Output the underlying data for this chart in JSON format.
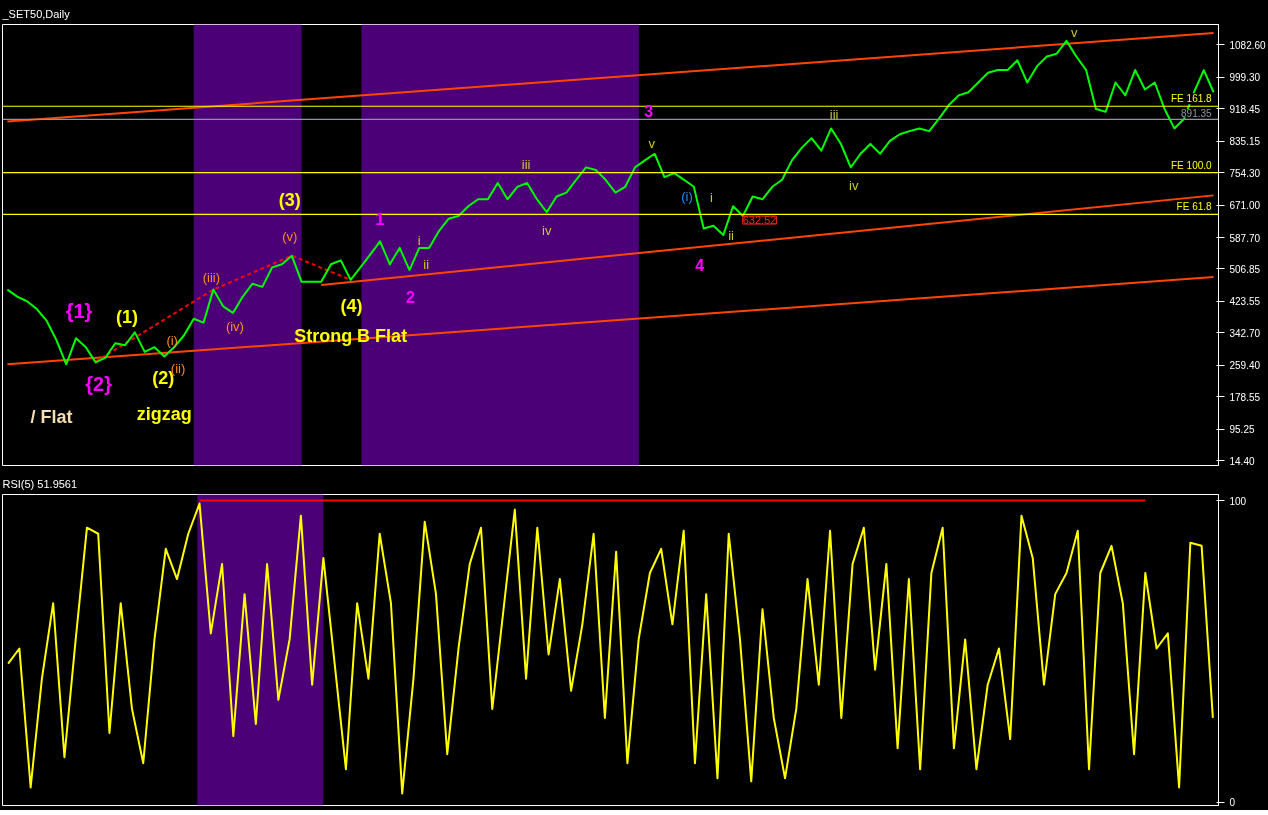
{
  "chart_data": [
    {
      "type": "line",
      "title": "_SET50,Daily",
      "ylim": [
        2,
        1135
      ],
      "tick_labels": "y",
      "grid": false,
      "categories": [
        null,
        null,
        null,
        null,
        null,
        null,
        null,
        null,
        null,
        null,
        null,
        null,
        null,
        null,
        null,
        null,
        null,
        null,
        null,
        null,
        null,
        null,
        null,
        null,
        null,
        null,
        null,
        null,
        null,
        null,
        null,
        null,
        null,
        null,
        null,
        null,
        null,
        null,
        null,
        null,
        null,
        null,
        null,
        null,
        null,
        null,
        null,
        null,
        null,
        null,
        null,
        null,
        null,
        null,
        null,
        null,
        null,
        null,
        null,
        null,
        null,
        null,
        null,
        null,
        null,
        null,
        null,
        null,
        null,
        null,
        null,
        null,
        null,
        null,
        null,
        null,
        null,
        null,
        null,
        null,
        null,
        null,
        null,
        null,
        null,
        null,
        null,
        null,
        null,
        null,
        null,
        null,
        null,
        null,
        null,
        null,
        null,
        null,
        null,
        null,
        null,
        null,
        null,
        null,
        null,
        null,
        null,
        null,
        null,
        null,
        null,
        null,
        null,
        null,
        null,
        null,
        null,
        null,
        null,
        null,
        null,
        null,
        null,
        null
      ],
      "yticks": [
        {
          "value": 14.4,
          "label": "14.40"
        },
        {
          "value": 95.25,
          "label": "95.25"
        },
        {
          "value": 178.55,
          "label": "178.55"
        },
        {
          "value": 259.4,
          "label": "259.40"
        },
        {
          "value": 342.7,
          "label": "342.70"
        },
        {
          "value": 423.55,
          "label": "423.55"
        },
        {
          "value": 506.85,
          "label": "506.85"
        },
        {
          "value": 587.7,
          "label": "587.70"
        },
        {
          "value": 671.0,
          "label": "671.00"
        },
        {
          "value": 754.3,
          "label": "754.30"
        },
        {
          "value": 835.15,
          "label": "835.15"
        },
        {
          "value": 918.45,
          "label": "918.45"
        },
        {
          "value": 999.3,
          "label": "999.30"
        },
        {
          "value": 1082.6,
          "label": "1082.60"
        }
      ],
      "ref_lines": [
        {
          "axis": "y",
          "value": 925,
          "label": "FE 161.8",
          "color": "#ffff00"
        },
        {
          "axis": "y",
          "value": 891.35,
          "label": "891.35",
          "color": "#8c96a0"
        },
        {
          "axis": "y",
          "value": 754.3,
          "label": "FE 100.0",
          "color": "#ffff00"
        },
        {
          "axis": "y",
          "value": 647,
          "label": "FE 61.8",
          "color": "#ffff00"
        }
      ],
      "series": [
        {
          "color": "#ff4500",
          "values": [
            886,
            null,
            null,
            null,
            null,
            null,
            null,
            null,
            null,
            null,
            null,
            null,
            null,
            null,
            null,
            null,
            null,
            null,
            null,
            null,
            null,
            null,
            null,
            null,
            null,
            null,
            null,
            null,
            null,
            null,
            null,
            null,
            null,
            null,
            null,
            null,
            null,
            null,
            null,
            null,
            null,
            null,
            null,
            null,
            null,
            null,
            null,
            null,
            null,
            null,
            null,
            null,
            null,
            null,
            null,
            null,
            null,
            null,
            null,
            null,
            null,
            null,
            null,
            null,
            null,
            null,
            null,
            null,
            null,
            null,
            null,
            null,
            null,
            null,
            null,
            null,
            null,
            null,
            null,
            null,
            null,
            null,
            null,
            null,
            null,
            null,
            null,
            null,
            null,
            null,
            null,
            null,
            null,
            null,
            null,
            null,
            null,
            null,
            null,
            null,
            null,
            null,
            null,
            null,
            null,
            null,
            null,
            null,
            null,
            null,
            null,
            null,
            null,
            null,
            null,
            null,
            null,
            null,
            null,
            null,
            null,
            null,
            null,
            1113
          ]
        },
        {
          "color": "#ff4500",
          "values": [
            null,
            null,
            null,
            null,
            null,
            null,
            null,
            null,
            null,
            null,
            null,
            null,
            null,
            null,
            null,
            null,
            null,
            null,
            null,
            null,
            null,
            null,
            null,
            null,
            null,
            null,
            null,
            null,
            null,
            null,
            null,
            null,
            466,
            null,
            null,
            null,
            null,
            null,
            null,
            null,
            null,
            null,
            null,
            null,
            null,
            null,
            null,
            null,
            null,
            null,
            null,
            null,
            null,
            null,
            null,
            null,
            null,
            null,
            null,
            null,
            null,
            null,
            null,
            null,
            null,
            null,
            null,
            null,
            null,
            null,
            null,
            null,
            null,
            null,
            null,
            null,
            null,
            null,
            null,
            null,
            null,
            null,
            null,
            null,
            null,
            null,
            null,
            null,
            null,
            null,
            null,
            null,
            null,
            null,
            null,
            null,
            null,
            null,
            null,
            null,
            null,
            null,
            null,
            null,
            null,
            null,
            null,
            null,
            null,
            null,
            null,
            null,
            null,
            null,
            null,
            null,
            null,
            null,
            null,
            null,
            null,
            null,
            null,
            696
          ]
        },
        {
          "color": "#ff4500",
          "values": [
            262,
            null,
            null,
            null,
            null,
            null,
            null,
            null,
            null,
            null,
            null,
            null,
            null,
            null,
            null,
            null,
            null,
            null,
            null,
            null,
            null,
            null,
            null,
            null,
            null,
            null,
            null,
            null,
            null,
            null,
            null,
            null,
            null,
            null,
            null,
            null,
            null,
            null,
            null,
            null,
            null,
            null,
            null,
            null,
            null,
            null,
            null,
            null,
            null,
            null,
            null,
            null,
            null,
            null,
            null,
            null,
            null,
            null,
            null,
            null,
            null,
            null,
            null,
            null,
            null,
            null,
            null,
            null,
            null,
            null,
            null,
            null,
            null,
            null,
            null,
            null,
            null,
            null,
            null,
            null,
            null,
            null,
            null,
            null,
            null,
            null,
            null,
            null,
            null,
            null,
            null,
            null,
            null,
            null,
            null,
            null,
            null,
            null,
            null,
            null,
            null,
            null,
            null,
            null,
            null,
            null,
            null,
            null,
            null,
            null,
            null,
            null,
            null,
            null,
            null,
            null,
            null,
            null,
            null,
            null,
            null,
            null,
            null,
            486
          ]
        },
        {
          "color": "#ff0000",
          "line_style": "dashed",
          "values": [
            null,
            null,
            null,
            null,
            null,
            null,
            null,
            null,
            null,
            269,
            null,
            null,
            null,
            null,
            null,
            null,
            null,
            null,
            null,
            null,
            null,
            454,
            null,
            null,
            null,
            null,
            null,
            null,
            null,
            541,
            null,
            null,
            null,
            null,
            null,
            479,
            null,
            null,
            null,
            null,
            null,
            null,
            null,
            null,
            null,
            null,
            null,
            null,
            null,
            null,
            null,
            null,
            null,
            null,
            null,
            null,
            null,
            null,
            null,
            null,
            null,
            null,
            null,
            null,
            null,
            null,
            null,
            null,
            null,
            null,
            null,
            null,
            null,
            null,
            null,
            null,
            null,
            null,
            null,
            null,
            null,
            null,
            null,
            null,
            null,
            null,
            null,
            null,
            null,
            null,
            null,
            null,
            null,
            null,
            null,
            null,
            null,
            null,
            null,
            null,
            null,
            null,
            null,
            null,
            null,
            null,
            null,
            null,
            null,
            null,
            null,
            null,
            null,
            null,
            null,
            null,
            null,
            null,
            null,
            null,
            null,
            null,
            null,
            null
          ]
        },
        {
          "color": "#00ff00",
          "values": [
            454,
            436,
            424,
            404,
            374,
            324,
            262,
            329,
            306,
            267,
            279,
            316,
            311,
            344,
            294,
            306,
            282,
            306,
            336,
            379,
            369,
            454,
            411,
            394,
            436,
            469,
            461,
            511,
            519,
            541,
            474,
            474,
            474,
            519,
            529,
            479,
            511,
            544,
            578,
            519,
            561,
            504,
            561,
            561,
            604,
            636,
            643,
            668,
            686,
            686,
            728,
            686,
            718,
            728,
            686,
            653,
            693,
            703,
            736,
            768,
            761,
            736,
            703,
            718,
            768,
            786,
            803,
            743,
            753,
            736,
            718,
            611,
            618,
            594,
            668,
            643,
            693,
            686,
            718,
            736,
            786,
            818,
            843,
            811,
            868,
            828,
            768,
            803,
            828,
            803,
            836,
            853,
            861,
            868,
            861,
            893,
            928,
            953,
            961,
            986,
            1011,
            1018,
            1018,
            1043,
            986,
            1028,
            1053,
            1060,
            1093,
            1053,
            1018,
            918,
            911,
            986,
            953,
            1018,
            968,
            986,
            918,
            868,
            893,
            961,
            1018,
            961
          ]
        }
      ],
      "annotations": [
        "{1}",
        "{2}",
        "(1)",
        "(2)",
        "zigzag",
        "/ Flat",
        "(i)",
        "(ii)",
        "(iii)",
        "(iv)",
        "(v)",
        "(3)",
        "(4)",
        "Strong B Flat",
        "1",
        "2",
        "i",
        "ii",
        "iii",
        "iv",
        "3",
        "v",
        "4",
        "(i)",
        "i",
        "ii",
        "632.52",
        "iii",
        "iv",
        "v"
      ]
    },
    {
      "type": "line",
      "title": "RSI(5) 51.9561",
      "ylim": [
        -1,
        102
      ],
      "tick_labels": "y",
      "grid": false,
      "yticks": [
        0,
        100
      ],
      "categories": [
        null,
        null,
        null,
        null,
        null,
        null,
        null,
        null,
        null,
        null,
        null,
        null,
        null,
        null,
        null,
        null,
        null,
        null,
        null,
        null,
        null,
        null,
        null,
        null,
        null,
        null,
        null,
        null,
        null,
        null,
        null,
        null,
        null,
        null,
        null,
        null,
        null,
        null,
        null,
        null,
        null,
        null,
        null,
        null,
        null,
        null,
        null,
        null,
        null,
        null,
        null,
        null,
        null,
        null,
        null,
        null,
        null,
        null,
        null,
        null,
        null,
        null,
        null,
        null,
        null,
        null,
        null,
        null,
        null,
        null,
        null,
        null,
        null,
        null,
        null,
        null,
        null,
        null,
        null,
        null,
        null,
        null,
        null,
        null,
        null,
        null,
        null,
        null,
        null,
        null,
        null,
        null,
        null,
        null,
        null,
        null,
        null,
        null,
        null,
        null,
        null,
        null,
        null,
        null,
        null,
        null,
        null,
        null
      ],
      "series": [
        {
          "color": "#ff0000",
          "values": [
            null,
            null,
            null,
            null,
            null,
            null,
            null,
            null,
            null,
            null,
            null,
            null,
            null,
            null,
            null,
            null,
            null,
            100,
            null,
            null,
            null,
            null,
            null,
            null,
            null,
            null,
            null,
            null,
            null,
            null,
            null,
            null,
            null,
            null,
            null,
            null,
            null,
            null,
            null,
            null,
            null,
            null,
            null,
            null,
            null,
            null,
            null,
            null,
            null,
            null,
            null,
            null,
            null,
            null,
            null,
            null,
            null,
            null,
            null,
            null,
            null,
            null,
            null,
            null,
            null,
            null,
            null,
            null,
            null,
            null,
            null,
            null,
            null,
            null,
            null,
            null,
            null,
            null,
            null,
            null,
            null,
            null,
            null,
            null,
            null,
            null,
            null,
            null,
            null,
            null,
            null,
            null,
            null,
            null,
            null,
            null,
            null,
            null,
            null,
            null,
            null,
            100,
            null,
            null,
            null,
            null,
            null,
            null
          ]
        },
        {
          "color": "#ffff00",
          "values": [
            46,
            51,
            5,
            41,
            66,
            15,
            54,
            91,
            89,
            23,
            66,
            31,
            13,
            54,
            84,
            74,
            89,
            99,
            56,
            79,
            22,
            69,
            26,
            79,
            34,
            54,
            95,
            39,
            81,
            46,
            11,
            66,
            41,
            89,
            66,
            3,
            41,
            93,
            69,
            16,
            51,
            79,
            91,
            31,
            64,
            97,
            41,
            91,
            49,
            74,
            37,
            59,
            89,
            28,
            83,
            13,
            54,
            76,
            84,
            59,
            90,
            13,
            69,
            8,
            89,
            54,
            7,
            64,
            28,
            8,
            31,
            74,
            39,
            90,
            28,
            79,
            91,
            44,
            79,
            18,
            74,
            11,
            76,
            91,
            18,
            54,
            11,
            39,
            51,
            21,
            95,
            81,
            39,
            69,
            76,
            90,
            11,
            76,
            85,
            66,
            16,
            76,
            51,
            56,
            5,
            86,
            85,
            28
          ]
        }
      ]
    }
  ]
}
